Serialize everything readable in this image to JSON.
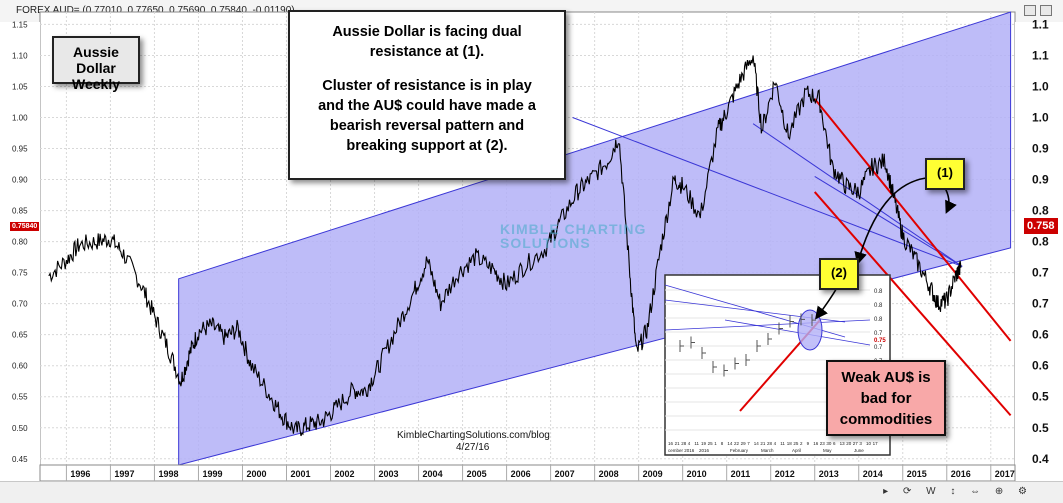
{
  "window": {
    "title": "FOREX AUD= (0.77010, 0.77650, 0.75690, 0.75840, -0.01190)",
    "tools_icons": [
      "arrow-right-icon",
      "cursor-icon",
      "cycle-icon",
      "move-icon",
      "trend-icon",
      "zoom-icon",
      "settings-icon"
    ]
  },
  "labels": {
    "chart_name_line1": "Aussie Dollar",
    "chart_name_line2": "Weekly",
    "comment_line1": "Aussie Dollar is facing dual",
    "comment_line2": "resistance at (1).",
    "comment_line3": "Cluster of resistance is in play",
    "comment_line4": "and the AU$ could have made a",
    "comment_line5": "bearish reversal pattern and",
    "comment_line6": "breaking support at (2).",
    "marker1": "(1)",
    "marker2": "(2)",
    "callout_line1": "Weak AU$ is",
    "callout_line2": "bad for",
    "callout_line3": "commodities",
    "credit_site": "KimbleChartingSolutions.com/blog",
    "credit_date": "4/27/16",
    "price_tag_left": "0.75840",
    "price_tag_right": "0.758",
    "watermark_line1": "KIMBLE CHARTING",
    "watermark_line2": "SOLUTIONS"
  },
  "colors": {
    "channel_fill": "#b3b0f7",
    "channel_line": "#3b37d6",
    "resistance_line": "#e00000",
    "price_line": "#000000",
    "highlight_yellow": "#ffff33",
    "callout_pink": "#f8a8a8"
  },
  "chart_data": {
    "type": "line",
    "series": [
      {
        "values": [
          [
            1995.6,
            0.745
          ],
          [
            1996.0,
            0.77
          ],
          [
            1996.3,
            0.795
          ],
          [
            1996.7,
            0.8
          ],
          [
            1997.0,
            0.805
          ],
          [
            1997.3,
            0.78
          ],
          [
            1997.7,
            0.73
          ],
          [
            1998.0,
            0.68
          ],
          [
            1998.3,
            0.63
          ],
          [
            1998.6,
            0.575
          ],
          [
            1998.8,
            0.62
          ],
          [
            1999.0,
            0.655
          ],
          [
            1999.3,
            0.665
          ],
          [
            1999.6,
            0.645
          ],
          [
            1999.9,
            0.66
          ],
          [
            2000.2,
            0.6
          ],
          [
            2000.6,
            0.555
          ],
          [
            2000.9,
            0.52
          ],
          [
            2001.2,
            0.495
          ],
          [
            2001.5,
            0.505
          ],
          [
            2001.8,
            0.51
          ],
          [
            2002.1,
            0.53
          ],
          [
            2002.5,
            0.56
          ],
          [
            2002.8,
            0.56
          ],
          [
            2003.1,
            0.6
          ],
          [
            2003.5,
            0.66
          ],
          [
            2003.9,
            0.72
          ],
          [
            2004.2,
            0.77
          ],
          [
            2004.5,
            0.7
          ],
          [
            2004.9,
            0.75
          ],
          [
            2005.3,
            0.775
          ],
          [
            2005.7,
            0.755
          ],
          [
            2006.0,
            0.73
          ],
          [
            2006.4,
            0.76
          ],
          [
            2006.9,
            0.79
          ],
          [
            2007.2,
            0.83
          ],
          [
            2007.6,
            0.88
          ],
          [
            2007.9,
            0.9
          ],
          [
            2008.3,
            0.93
          ],
          [
            2008.55,
            0.97
          ],
          [
            2008.8,
            0.75
          ],
          [
            2008.95,
            0.62
          ],
          [
            2009.2,
            0.66
          ],
          [
            2009.5,
            0.79
          ],
          [
            2009.8,
            0.9
          ],
          [
            2010.0,
            0.89
          ],
          [
            2010.4,
            0.84
          ],
          [
            2010.8,
            0.98
          ],
          [
            2011.0,
            1.01
          ],
          [
            2011.3,
            1.06
          ],
          [
            2011.6,
            1.1
          ],
          [
            2011.8,
            0.98
          ],
          [
            2012.1,
            1.06
          ],
          [
            2012.4,
            0.97
          ],
          [
            2012.8,
            1.04
          ],
          [
            2013.1,
            1.03
          ],
          [
            2013.4,
            0.92
          ],
          [
            2013.7,
            0.89
          ],
          [
            2014.0,
            0.88
          ],
          [
            2014.3,
            0.92
          ],
          [
            2014.6,
            0.93
          ],
          [
            2014.8,
            0.87
          ],
          [
            2015.0,
            0.81
          ],
          [
            2015.3,
            0.77
          ],
          [
            2015.6,
            0.73
          ],
          [
            2015.8,
            0.7
          ],
          [
            2016.0,
            0.705
          ],
          [
            2016.2,
            0.745
          ],
          [
            2016.32,
            0.758
          ]
        ]
      }
    ],
    "channel": {
      "upper": [
        [
          1998.55,
          0.74
        ],
        [
          2017.45,
          1.17
        ]
      ],
      "lower": [
        [
          1998.55,
          0.44
        ],
        [
          2017.45,
          0.79
        ]
      ]
    },
    "resistance_lines_blue": [
      [
        [
          2007.5,
          1.0
        ],
        [
          2016.35,
          0.76
        ]
      ],
      [
        [
          2011.6,
          0.99
        ],
        [
          2016.35,
          0.76
        ]
      ],
      [
        [
          2013.0,
          0.905
        ],
        [
          2016.35,
          0.76
        ]
      ]
    ],
    "resistance_lines_red": [
      [
        [
          2013.0,
          1.03
        ],
        [
          2017.45,
          0.64
        ]
      ],
      [
        [
          2013.0,
          0.88
        ],
        [
          2017.45,
          0.52
        ]
      ]
    ],
    "x_tick_labels": [
      "1996",
      "1997",
      "1998",
      "1999",
      "2000",
      "2001",
      "2002",
      "2003",
      "2004",
      "2005",
      "2006",
      "2007",
      "2008",
      "2009",
      "2010",
      "2011",
      "2012",
      "2013",
      "2014",
      "2015",
      "2016",
      "2017"
    ],
    "x_range": [
      1995.4,
      2017.55
    ],
    "y_tick_labels_left": [
      "1.15",
      "1.10",
      "1.05",
      "1.00",
      "0.95",
      "0.90",
      "0.85",
      "0.80",
      "0.75",
      "0.70",
      "0.65",
      "0.60",
      "0.55",
      "0.50",
      "0.45"
    ],
    "y_tick_labels_right": [
      "1.1",
      "1.1",
      "1.0",
      "1.0",
      "0.9",
      "0.9",
      "0.8",
      "0.8",
      "0.7",
      "0.7",
      "0.6",
      "0.6",
      "0.5",
      "0.5",
      "0.4"
    ],
    "ylim": [
      0.44,
      1.17
    ],
    "grid": true,
    "inset": {
      "type": "line",
      "x_labels": [
        "16",
        "21",
        "28",
        "4",
        "11",
        "19",
        "25",
        "1",
        "8",
        "14",
        "22",
        "29",
        "7",
        "14",
        "21",
        "28",
        "4",
        "11",
        "18",
        "25",
        "2",
        "9",
        "16",
        "23",
        "30",
        "6",
        "13",
        "20",
        "27",
        "3",
        "10",
        "17"
      ],
      "x_group_labels": [
        "cember 2016",
        "2016",
        "February",
        "March",
        "April",
        "May",
        "June"
      ],
      "y_labels": [
        "0.8",
        "0.8",
        "0.8",
        "0.7",
        "0.7",
        "0.7",
        "0.7",
        "0.7",
        "0.7",
        "0.7",
        "0.6"
      ],
      "values": [
        0.72,
        0.725,
        0.71,
        0.69,
        0.685,
        0.695,
        0.7,
        0.72,
        0.73,
        0.745,
        0.755,
        0.758,
        0.757
      ],
      "price_tag": "0.75"
    }
  }
}
